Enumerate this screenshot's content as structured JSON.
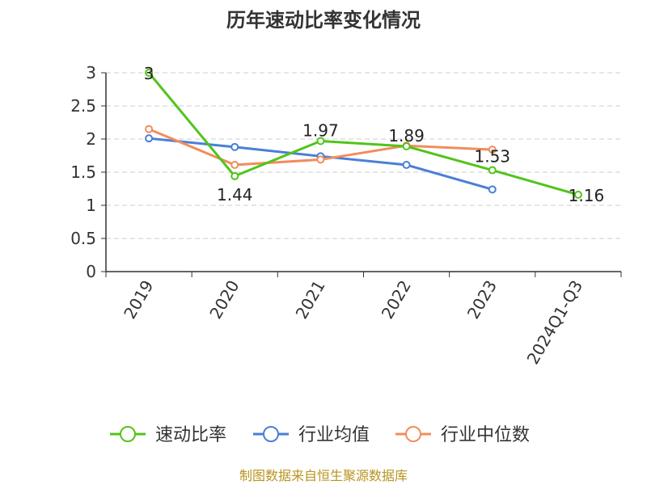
{
  "chart_data": {
    "type": "line",
    "title": "历年速动比率变化情况",
    "categories": [
      "2019",
      "2020",
      "2021",
      "2022",
      "2023",
      "2024Q1-Q3"
    ],
    "y_ticks": [
      "0",
      "0.5",
      "1",
      "1.5",
      "2",
      "2.5",
      "3"
    ],
    "ylim": [
      0,
      3
    ],
    "grid": true,
    "legend_position": "bottom",
    "series": [
      {
        "name": "速动比率",
        "color": "#52c41a",
        "values": [
          3,
          1.44,
          1.97,
          1.89,
          1.53,
          1.16
        ],
        "labels": [
          "3",
          "1.44",
          "1.97",
          "1.89",
          "1.53",
          "1.16"
        ]
      },
      {
        "name": "行业均值",
        "color": "#4a7fd6",
        "values": [
          2.01,
          1.88,
          1.74,
          1.61,
          1.24,
          null
        ]
      },
      {
        "name": "行业中位数",
        "color": "#f28c5c",
        "values": [
          2.15,
          1.61,
          1.69,
          1.9,
          1.84,
          null
        ]
      }
    ],
    "source": "制图数据来自恒生聚源数据库"
  }
}
